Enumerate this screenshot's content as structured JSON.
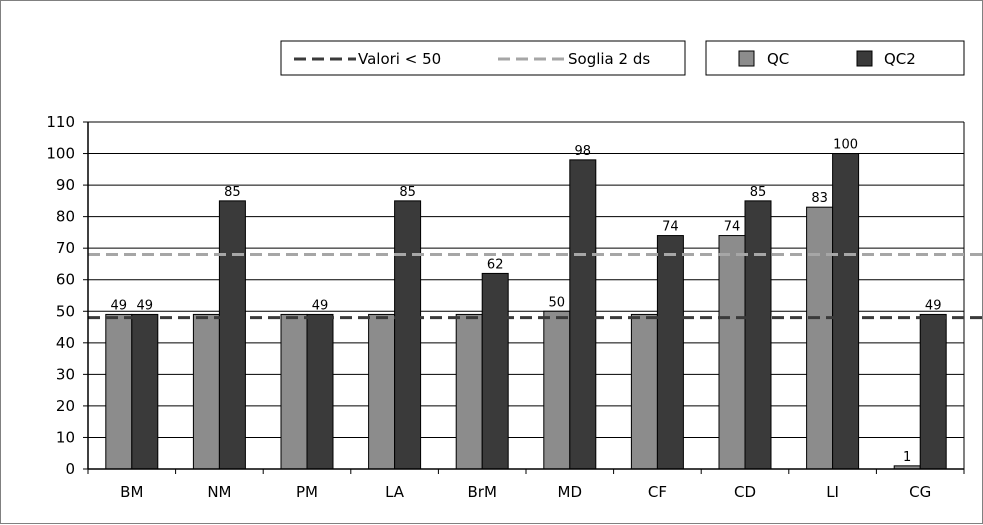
{
  "colors": {
    "qc": "#8c8c8c",
    "qc2": "#3a3a3a",
    "threshold_low": "#3a3a3a",
    "threshold_high": "#a6a6a6",
    "grid": "#000000"
  },
  "legend": {
    "lines": [
      {
        "label": "Valori < 50",
        "style": "dashed-dark"
      },
      {
        "label": "Soglia 2 ds",
        "style": "dashed-light"
      }
    ],
    "bars": [
      {
        "label": "QC"
      },
      {
        "label": "QC2"
      }
    ]
  },
  "chart_data": {
    "type": "bar",
    "categories": [
      "BM",
      "NM",
      "PM",
      "LA",
      "BrM",
      "MD",
      "CF",
      "CD",
      "LI",
      "CG"
    ],
    "series": [
      {
        "name": "QC",
        "values": [
          49,
          49,
          49,
          49,
          49,
          50,
          49,
          74,
          83,
          1
        ],
        "labels": [
          "49",
          "49",
          "49",
          "49",
          "49",
          "50",
          "49",
          "74",
          "83",
          "1"
        ]
      },
      {
        "name": "QC2",
        "values": [
          49,
          85,
          49,
          85,
          62,
          98,
          74,
          85,
          100,
          49
        ],
        "labels": [
          "49",
          "85",
          "49",
          "85",
          "62",
          "98",
          "74",
          "85",
          "100",
          "49"
        ]
      }
    ],
    "reference_lines": [
      {
        "name": "Valori < 50",
        "value": 48,
        "style": "dashed"
      },
      {
        "name": "Soglia 2 ds",
        "value": 68,
        "style": "dashed"
      }
    ],
    "hide_labels": [
      {
        "series": 0,
        "index": 1
      },
      {
        "series": 0,
        "index": 2
      },
      {
        "series": 0,
        "index": 3
      },
      {
        "series": 0,
        "index": 4
      },
      {
        "series": 0,
        "index": 6
      }
    ],
    "ylim": [
      0,
      110
    ],
    "yticks": [
      0,
      10,
      20,
      30,
      40,
      50,
      60,
      70,
      80,
      90,
      100,
      110
    ],
    "grid": true,
    "legend_position": "top-right"
  }
}
